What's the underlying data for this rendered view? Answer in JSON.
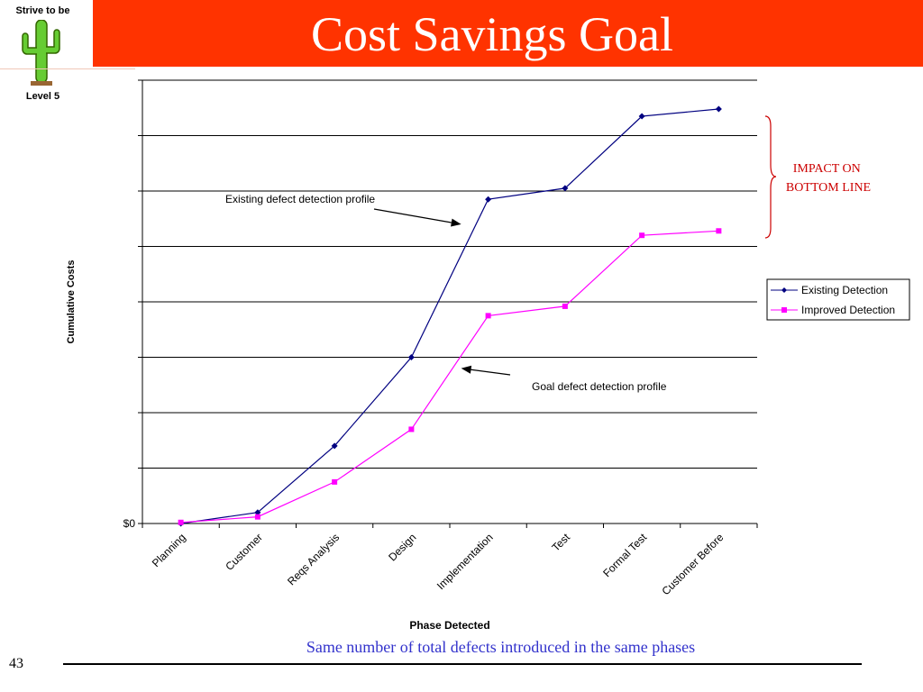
{
  "slide": {
    "title": "Cost Savings Goal",
    "logo_top": "Strive to be",
    "logo_bottom": "Level 5",
    "footnote": "Same number of total defects introduced in the same phases",
    "page_number": "43"
  },
  "colors": {
    "header": "#ff3300",
    "existing": "#000080",
    "improved": "#ff00ff",
    "impact": "#cc0000",
    "footnote": "#3333cc"
  },
  "icons": {
    "logo": "cactus-icon"
  },
  "chart_data": {
    "type": "line",
    "xlabel": "Phase Detected",
    "ylabel": "Cumulative Costs",
    "ylim": [
      0,
      8
    ],
    "y_tick_labels": [
      {
        "value": 0,
        "label": "$0"
      }
    ],
    "grid": true,
    "legend_position": "right",
    "categories": [
      "Planning",
      "Customer",
      "Reqs Analysis",
      "Design",
      "Implementation",
      "Test",
      "Formal Test",
      "Customer Before"
    ],
    "series": [
      {
        "name": "Existing Detection",
        "values": [
          0.0,
          0.2,
          1.4,
          3.0,
          5.85,
          6.05,
          7.35,
          7.48
        ]
      },
      {
        "name": "Improved Detection",
        "values": [
          0.02,
          0.12,
          0.75,
          1.7,
          3.75,
          3.92,
          5.2,
          5.28
        ]
      }
    ],
    "annotations": [
      {
        "text": "Existing defect detection profile",
        "target_series": "Existing Detection",
        "target_x": "Implementation",
        "target_y": 5.4
      },
      {
        "text": "Goal defect detection profile",
        "target_series": "Improved Detection",
        "target_x": "Implementation",
        "target_y": 2.8
      },
      {
        "text": [
          "IMPACT ON",
          "BOTTOM LINE"
        ]
      }
    ]
  }
}
